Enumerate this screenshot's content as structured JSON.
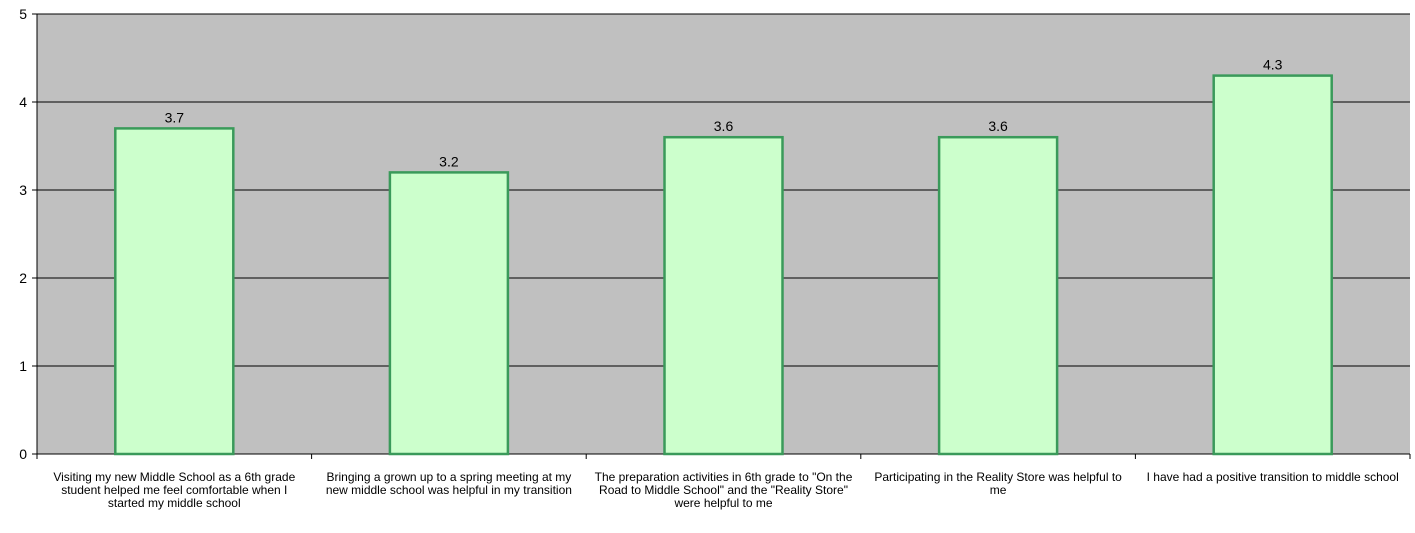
{
  "chart_data": {
    "type": "bar",
    "categories": [
      "Visiting my new Middle School as a 6th grade student helped me feel comfortable when I started my middle school",
      "Bringing a grown up to a spring meeting at my new middle school was helpful in my transition",
      "The preparation activities in 6th grade to \"On the Road to Middle School\" and the \"Reality Store\" were helpful to me",
      "Participating in the Reality Store was helpful to me",
      "I have had a positive transition to middle school"
    ],
    "values": [
      3.7,
      3.2,
      3.6,
      3.6,
      4.3
    ],
    "data_labels": [
      "3.7",
      "3.2",
      "3.6",
      "3.6",
      "4.3"
    ],
    "yticks": [
      "0",
      "1",
      "2",
      "3",
      "4",
      "5"
    ],
    "ylim": [
      0,
      5
    ],
    "title": "",
    "xlabel": "",
    "ylabel": "",
    "grid": true,
    "legend": "none",
    "colors": {
      "plot_background": "#c0c0c0",
      "bar_fill": "#ccffcc",
      "bar_stroke": "#3a9a5a",
      "gridline": "#000000"
    }
  }
}
